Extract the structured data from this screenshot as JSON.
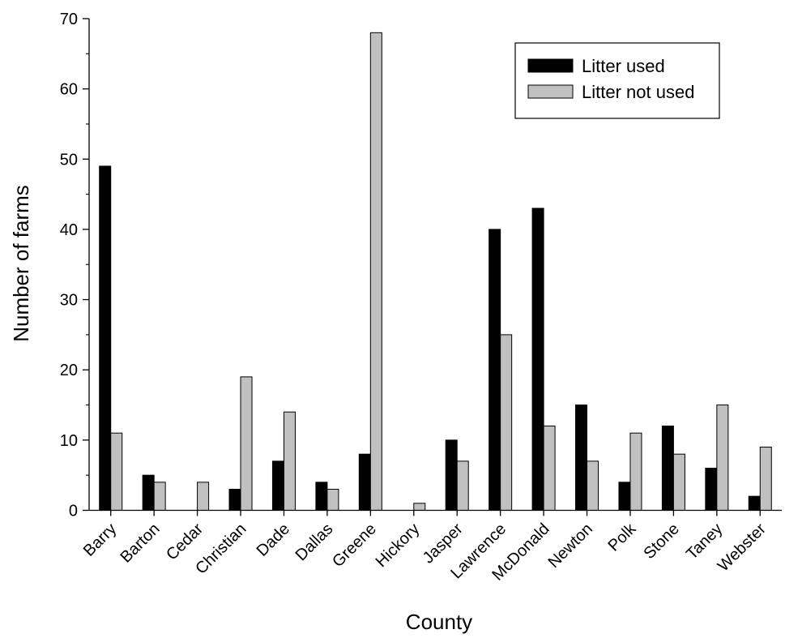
{
  "chart_data": {
    "type": "bar",
    "title": "",
    "xlabel": "County",
    "ylabel": "Number of farms",
    "ylim": [
      0,
      70
    ],
    "yticks": [
      0,
      10,
      20,
      30,
      40,
      50,
      60,
      70
    ],
    "grid": false,
    "legend_position": "top-right",
    "categories": [
      "Barry",
      "Barton",
      "Cedar",
      "Christian",
      "Dade",
      "Dallas",
      "Greene",
      "Hickory",
      "Jasper",
      "Lawrence",
      "McDonald",
      "Newton",
      "Polk",
      "Stone",
      "Taney",
      "Webster"
    ],
    "series": [
      {
        "name": "Litter used",
        "color": "#000000",
        "values": [
          49,
          5,
          0,
          3,
          7,
          4,
          8,
          0,
          10,
          40,
          43,
          15,
          4,
          12,
          6,
          2
        ]
      },
      {
        "name": "Litter not used",
        "color": "#c0c0c0",
        "values": [
          11,
          4,
          4,
          19,
          14,
          3,
          68,
          1,
          7,
          25,
          12,
          7,
          11,
          8,
          15,
          9
        ]
      }
    ]
  }
}
